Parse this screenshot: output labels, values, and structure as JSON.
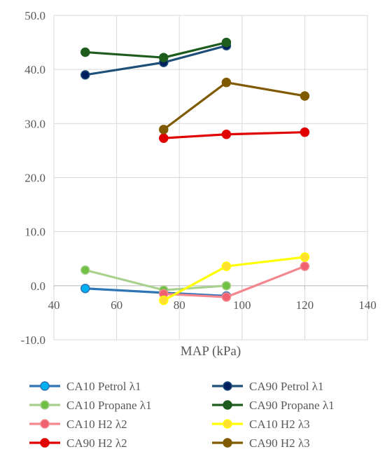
{
  "chart_data": {
    "type": "line",
    "title": "",
    "xlabel": "MAP (kPa)",
    "ylabel": "",
    "xlim": [
      40,
      140
    ],
    "ylim": [
      -10,
      50
    ],
    "x_ticks": [
      "40",
      "60",
      "80",
      "100",
      "120",
      "140"
    ],
    "y_ticks": [
      "-10.0",
      "0.0",
      "10.0",
      "20.0",
      "30.0",
      "40.0",
      "50.0"
    ],
    "grid": true,
    "legend_position": "bottom",
    "series": [
      {
        "name": "CA10 Petrol λ1",
        "color": "#00b0f0",
        "line_color": "#2e75b6",
        "points": [
          [
            50,
            -0.5
          ],
          [
            75,
            -1.3
          ],
          [
            95,
            -1.9
          ]
        ]
      },
      {
        "name": "CA90 Petrol λ1",
        "color": "#002060",
        "line_color": "#1f4e79",
        "points": [
          [
            50,
            39.0
          ],
          [
            75,
            41.3
          ],
          [
            95,
            44.4
          ]
        ]
      },
      {
        "name": "CA10 Propane λ1",
        "color": "#70c044",
        "line_color": "#a9d18e",
        "points": [
          [
            50,
            2.9
          ],
          [
            75,
            -0.8
          ],
          [
            95,
            0.0
          ]
        ]
      },
      {
        "name": "CA90 Propane λ1",
        "color": "#1e5c1e",
        "line_color": "#1e5c1e",
        "points": [
          [
            50,
            43.2
          ],
          [
            75,
            42.2
          ],
          [
            95,
            45.0
          ]
        ]
      },
      {
        "name": "CA10 H2 λ2",
        "color": "#f06070",
        "line_color": "#f4868e",
        "points": [
          [
            75,
            -1.5
          ],
          [
            95,
            -2.1
          ],
          [
            120,
            3.6
          ]
        ]
      },
      {
        "name": "CA10 H2 λ3",
        "color": "#ffe030",
        "line_color": "#ffff00",
        "points": [
          [
            75,
            -2.7
          ],
          [
            95,
            3.6
          ],
          [
            120,
            5.3
          ]
        ]
      },
      {
        "name": "CA90 H2 λ2",
        "color": "#e00000",
        "line_color": "#e00000",
        "points": [
          [
            75,
            27.3
          ],
          [
            95,
            28.0
          ],
          [
            120,
            28.4
          ]
        ]
      },
      {
        "name": "CA90 H2 λ3",
        "color": "#7f5a00",
        "line_color": "#7f5a00",
        "points": [
          [
            75,
            28.9
          ],
          [
            95,
            37.6
          ],
          [
            120,
            35.1
          ]
        ]
      }
    ]
  }
}
